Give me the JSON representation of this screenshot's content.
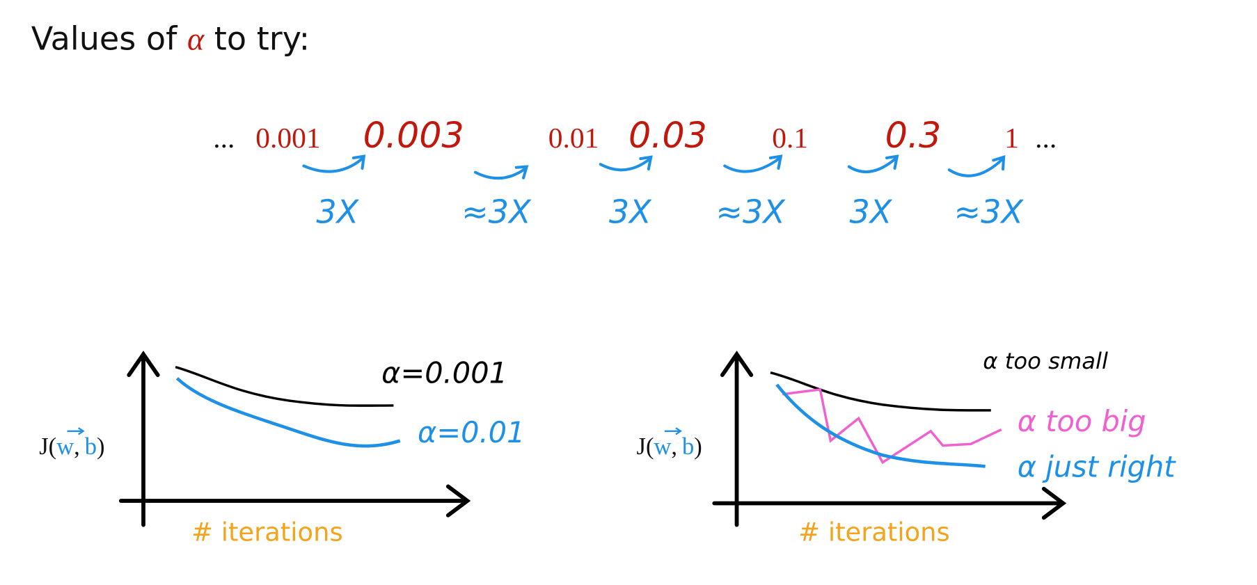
{
  "title": {
    "prefix": "Values of ",
    "symbol": "α",
    "suffix": " to try:"
  },
  "sequence": {
    "lead": "...",
    "values": [
      "0.001",
      "0.003",
      "0.01",
      "0.03",
      "0.1",
      "0.3",
      "1"
    ],
    "trail": "..."
  },
  "multipliers": [
    "3X",
    "≈3X",
    "3X",
    "≈3X",
    "3X",
    "≈3X"
  ],
  "left_plot": {
    "y_label": {
      "open": "J(",
      "w": "w",
      "comma": ",",
      "b": "b",
      "close": ")"
    },
    "x_label": "# iterations",
    "curve_labels": [
      "α=0.001",
      "α=0.01"
    ]
  },
  "right_plot": {
    "y_label": {
      "open": "J(",
      "w": "w",
      "comma": ",",
      "b": "b",
      "close": ")"
    },
    "x_label": "# iterations",
    "curve_labels": [
      "α too small",
      "α too big",
      "α just right"
    ]
  }
}
